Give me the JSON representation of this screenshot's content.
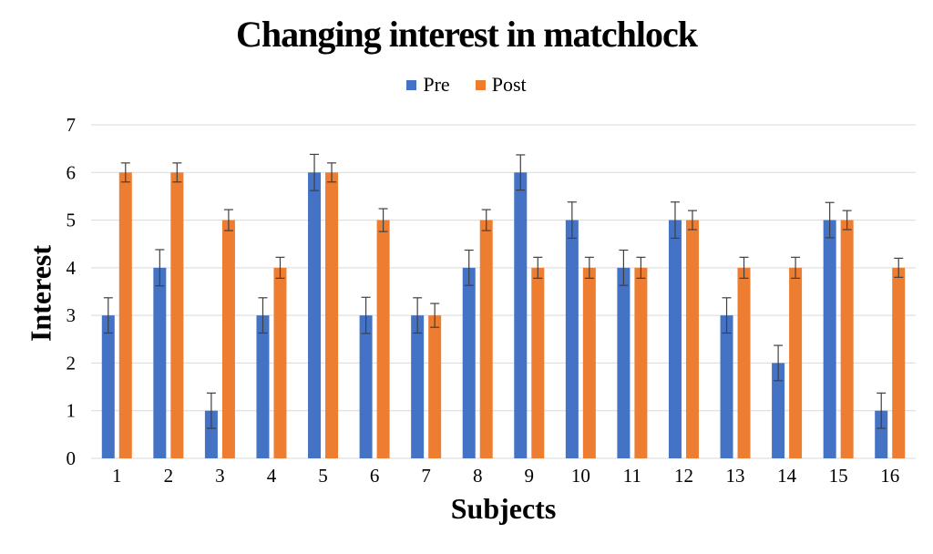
{
  "chart_data": {
    "type": "bar",
    "title": "Changing interest in matchlock",
    "xlabel": "Subjects",
    "ylabel": "Interest",
    "categories": [
      "1",
      "2",
      "3",
      "4",
      "5",
      "6",
      "7",
      "8",
      "9",
      "10",
      "11",
      "12",
      "13",
      "14",
      "15",
      "16"
    ],
    "series": [
      {
        "name": "Pre",
        "color": "#4472C4",
        "values": [
          3,
          4,
          1,
          3,
          6,
          3,
          3,
          4,
          6,
          5,
          4,
          5,
          3,
          2,
          5,
          1
        ],
        "errors": [
          0.37,
          0.38,
          0.37,
          0.37,
          0.38,
          0.38,
          0.37,
          0.37,
          0.37,
          0.38,
          0.37,
          0.38,
          0.37,
          0.37,
          0.37,
          0.37
        ]
      },
      {
        "name": "Post",
        "color": "#ED7D31",
        "values": [
          6,
          6,
          5,
          4,
          6,
          5,
          3,
          5,
          4,
          4,
          4,
          5,
          4,
          4,
          5,
          4
        ],
        "errors": [
          0.2,
          0.2,
          0.22,
          0.22,
          0.2,
          0.24,
          0.25,
          0.22,
          0.22,
          0.22,
          0.22,
          0.2,
          0.22,
          0.22,
          0.2,
          0.2
        ]
      }
    ],
    "ylim": [
      0,
      7
    ],
    "y_ticks": [
      0,
      1,
      2,
      3,
      4,
      5,
      6,
      7
    ],
    "grid": true,
    "legend_position": "top-center",
    "gridline_color": "#D9D9D9",
    "error_bar_color": "#404040",
    "tick_label_color": "#000000",
    "background": "#FFFFFF"
  }
}
